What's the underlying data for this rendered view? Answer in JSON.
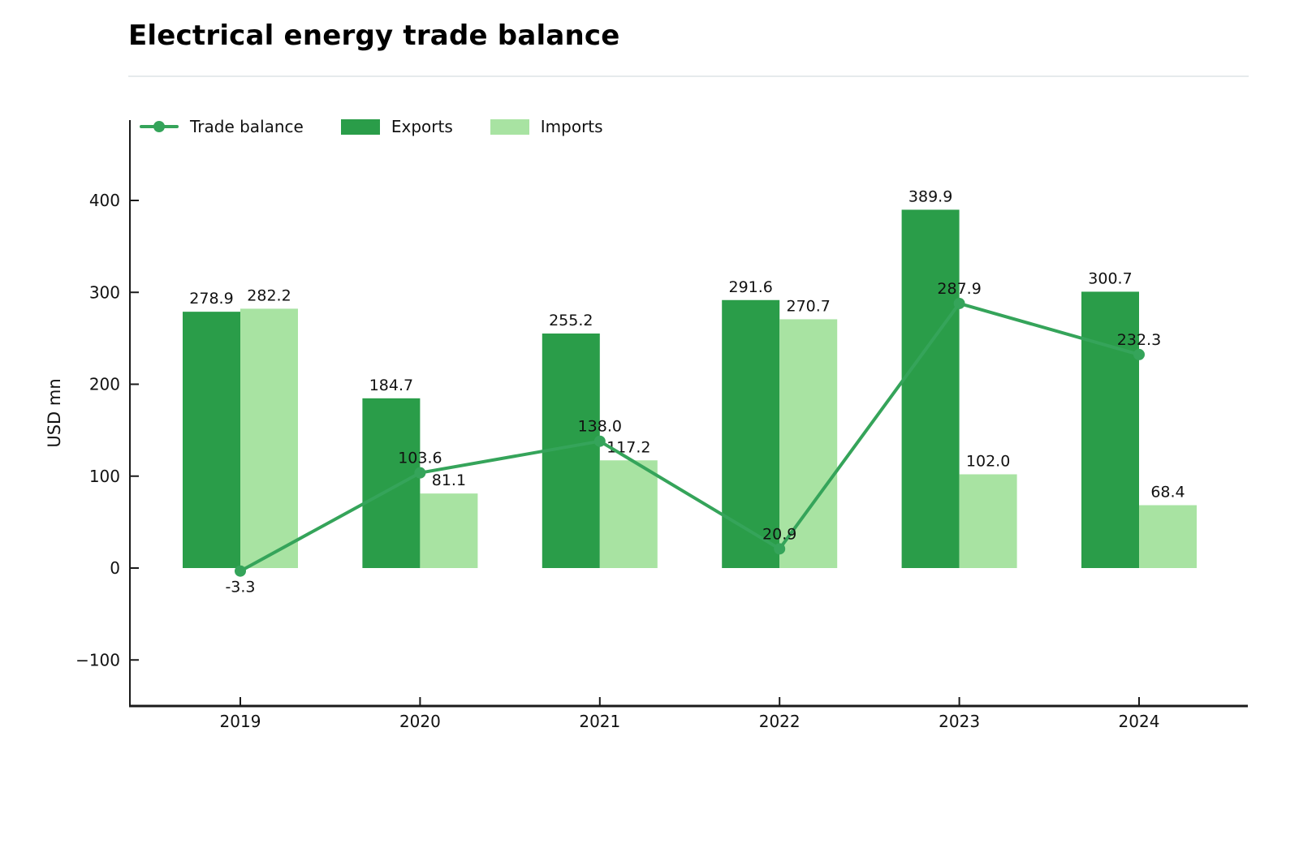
{
  "chart_data": {
    "type": "bar",
    "subtype": "grouped-bars-with-line",
    "title": "Electrical energy trade balance",
    "xlabel": "",
    "ylabel": "USD mn",
    "categories": [
      "2019",
      "2020",
      "2021",
      "2022",
      "2023",
      "2024"
    ],
    "series": [
      {
        "name": "Trade balance",
        "kind": "line",
        "values": [
          -3.3,
          103.6,
          138.0,
          20.9,
          287.9,
          232.3
        ]
      },
      {
        "name": "Exports",
        "kind": "bar",
        "values": [
          278.9,
          184.7,
          255.2,
          291.6,
          389.9,
          300.7
        ]
      },
      {
        "name": "Imports",
        "kind": "bar",
        "values": [
          282.2,
          81.1,
          117.2,
          270.7,
          102.0,
          68.4
        ]
      }
    ],
    "yticks": [
      -100,
      0,
      100,
      200,
      300,
      400
    ],
    "ylim": [
      -150,
      490
    ],
    "grid": false,
    "legend_position": "top-left-inside",
    "value_labels_decimals": 1,
    "colors": {
      "exports": "#2a9d49",
      "imports": "#a8e3a2",
      "trade_balance": "#35a45a",
      "separator": "#e6eaec",
      "axis": "#1a1a1a",
      "text": "#111111",
      "background": "#ffffff"
    }
  }
}
